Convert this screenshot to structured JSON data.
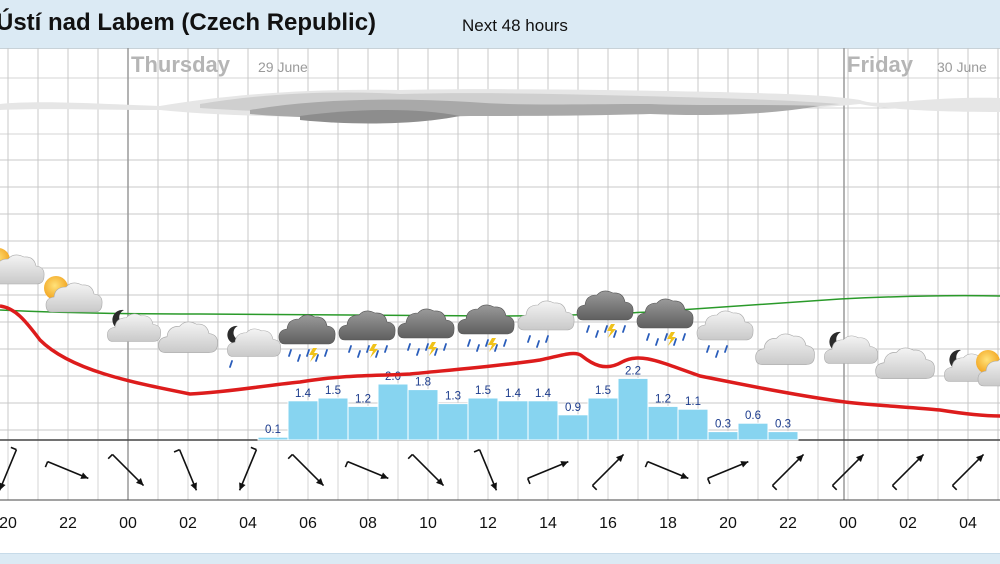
{
  "header": {
    "title": "Ústí nad Labem (Czech Republic)",
    "subtitle": "Next 48 hours"
  },
  "days": [
    {
      "name": "Thursday",
      "date": "29 June"
    },
    {
      "name": "Friday",
      "date": "30 June"
    }
  ],
  "colors": {
    "temperature": "#dd1c1c",
    "pressure": "#2a9a2a",
    "precipitation": "#87d4f0",
    "grid": "#c8c8c8",
    "header_bg": "#dbeaf4"
  },
  "chart_data": {
    "type": "meteogram",
    "x": [
      "20",
      "22",
      "00",
      "02",
      "04",
      "06",
      "08",
      "10",
      "12",
      "14",
      "16",
      "18",
      "20",
      "22",
      "00",
      "02",
      "04"
    ],
    "precipitation": {
      "times": [
        "04",
        "05",
        "06",
        "07",
        "08",
        "09",
        "10",
        "11",
        "12",
        "13",
        "14",
        "15",
        "16",
        "17",
        "18",
        "19",
        "20",
        "21"
      ],
      "values": [
        0.1,
        1.4,
        1.5,
        1.2,
        2.0,
        1.8,
        1.3,
        1.5,
        1.4,
        1.4,
        0.9,
        1.5,
        2.2,
        1.2,
        1.1,
        0.3,
        0.6,
        0.3
      ]
    },
    "temperature_trend": "decreasing from evening, low plateau through Thursday with a midday bump, falling again Thursday night",
    "pressure_trend": "nearly flat, slowly rising into Friday",
    "weather_icons": [
      "partly-cloudy-day",
      "partly-cloudy-day",
      "partly-cloudy-night",
      "cloudy",
      "partly-cloudy-night-rain",
      "thunder-rain",
      "thunder-rain",
      "thunder-rain",
      "thunder-rain",
      "cloudy-rain",
      "thunder-rain",
      "thunder-rain",
      "cloudy-rain",
      "cloudy",
      "partly-cloudy-night",
      "cloudy",
      "partly-cloudy-night",
      "partly-cloudy-day"
    ],
    "wind_directions": [
      "NNE",
      "WNW",
      "NW",
      "NNW",
      "NNE",
      "NW",
      "WNW",
      "NW",
      "NNW",
      "WSW",
      "SW",
      "WNW",
      "WSW",
      "SW",
      "SW",
      "SW",
      "SW"
    ],
    "grid": true
  }
}
